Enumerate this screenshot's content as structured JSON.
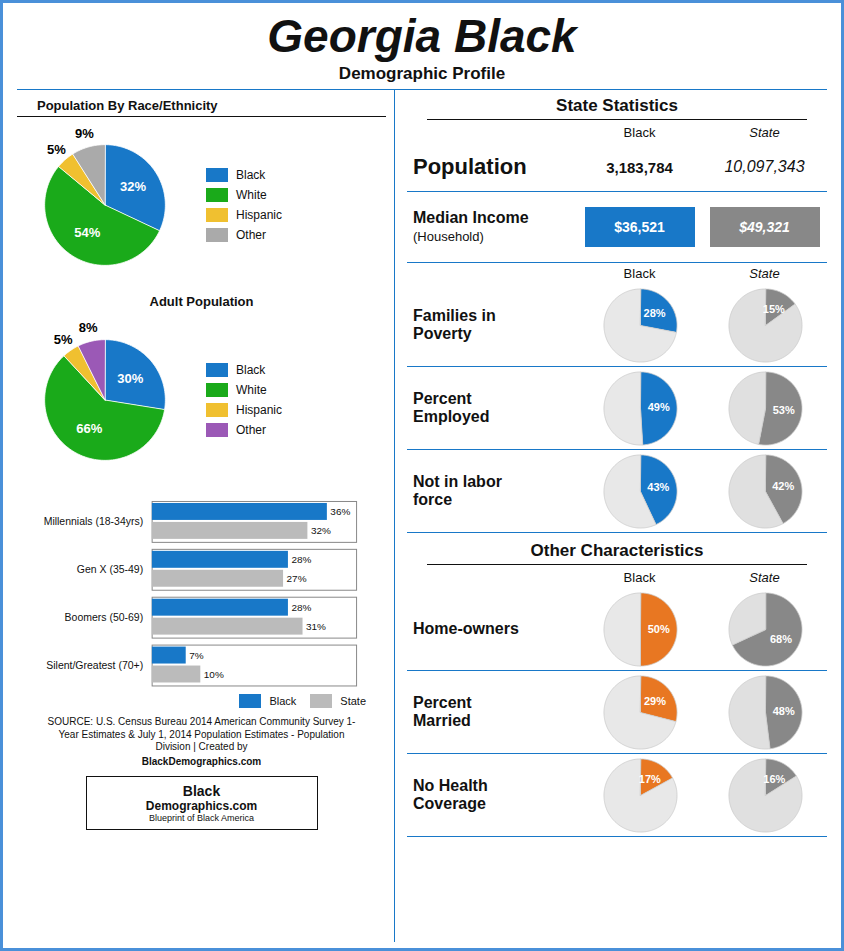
{
  "title": "Georgia Black",
  "subtitle": "Demographic Profile",
  "chart_data": [
    {
      "type": "pie",
      "title": "Population By Race/Ethnicity",
      "categories": [
        "Black",
        "White",
        "Hispanic",
        "Other"
      ],
      "values": [
        32,
        54,
        5,
        9
      ],
      "value_labels": [
        "32%",
        "54%",
        "5%",
        "9%"
      ],
      "colors": [
        "#1878c8",
        "#1aaa1a",
        "#f0c030",
        "#aaaaaa"
      ],
      "data_labels": true,
      "legend": "right"
    },
    {
      "type": "pie",
      "title": "Adult Population",
      "categories": [
        "Black",
        "White",
        "Hispanic",
        "Other"
      ],
      "values": [
        30,
        66,
        5,
        8
      ],
      "value_labels": [
        "30%",
        "66%",
        "5%",
        "8%"
      ],
      "colors": [
        "#1878c8",
        "#1aaa1a",
        "#f0c030",
        "#9b59b6"
      ],
      "data_labels": true,
      "legend": "right"
    },
    {
      "type": "bar",
      "orientation": "horizontal",
      "categories": [
        "Millennials (18-34yrs)",
        "Gen X (35-49)",
        "Boomers (50-69)",
        "Silent/Greatest (70+)"
      ],
      "series": [
        {
          "name": "Black",
          "color": "#1878c8",
          "values": [
            36,
            28,
            28,
            7
          ],
          "value_labels": [
            "36%",
            "28%",
            "28%",
            "7%"
          ]
        },
        {
          "name": "State",
          "color": "#bbbbbb",
          "values": [
            32,
            27,
            31,
            10
          ],
          "value_labels": [
            "32%",
            "27%",
            "31%",
            "10%"
          ]
        }
      ],
      "xlim": [
        0,
        42
      ],
      "tick_labels": "y",
      "data_labels": true,
      "legend": "lower right"
    },
    {
      "type": "table",
      "title": "State Statistics",
      "columns": [
        "Black",
        "State"
      ],
      "rows": [
        {
          "label": "Population",
          "values": [
            {
              "value": 3183784,
              "label": "3,183,784"
            },
            {
              "value": 10097343,
              "label": "10,097,343"
            }
          ]
        },
        {
          "label": "Median Income",
          "sublabel": "(Household)",
          "values": [
            {
              "value": 36521,
              "label": "$36,521"
            },
            {
              "value": 49321,
              "label": "$49,321"
            }
          ],
          "colors": [
            "#1878c8",
            "#888888"
          ]
        }
      ]
    },
    {
      "type": "pie",
      "columns": [
        "Black",
        "State"
      ],
      "data_labels": true,
      "rows": [
        {
          "label": "Families in\nPoverty",
          "series": [
            {
              "values": [
                28,
                72
              ],
              "value_labels": [
                "28%",
                null
              ],
              "colors": [
                "#1878c8",
                "#e8e8e8"
              ]
            },
            {
              "values": [
                15,
                85
              ],
              "value_labels": [
                "15%",
                null
              ],
              "colors": [
                "#888888",
                "#e0e0e0"
              ]
            }
          ]
        },
        {
          "label": "Percent\nEmployed",
          "series": [
            {
              "values": [
                49,
                51
              ],
              "value_labels": [
                "49%",
                null
              ],
              "colors": [
                "#1878c8",
                "#e8e8e8"
              ]
            },
            {
              "values": [
                53,
                47
              ],
              "value_labels": [
                "53%",
                null
              ],
              "colors": [
                "#888888",
                "#e0e0e0"
              ]
            }
          ]
        },
        {
          "label": "Not in labor\nforce",
          "series": [
            {
              "values": [
                43,
                57
              ],
              "value_labels": [
                "43%",
                null
              ],
              "colors": [
                "#1878c8",
                "#e8e8e8"
              ]
            },
            {
              "values": [
                42,
                58
              ],
              "value_labels": [
                "42%",
                null
              ],
              "colors": [
                "#888888",
                "#e0e0e0"
              ]
            }
          ]
        }
      ]
    },
    {
      "type": "pie",
      "title": "Other Characteristics",
      "columns": [
        "Black",
        "State"
      ],
      "data_labels": true,
      "rows": [
        {
          "label": "Home-owners",
          "series": [
            {
              "values": [
                50,
                50
              ],
              "value_labels": [
                "50%",
                null
              ],
              "colors": [
                "#e87722",
                "#e8e8e8"
              ]
            },
            {
              "values": [
                68,
                32
              ],
              "value_labels": [
                "68%",
                null
              ],
              "colors": [
                "#888888",
                "#e0e0e0"
              ]
            }
          ]
        },
        {
          "label": "Percent\nMarried",
          "series": [
            {
              "values": [
                29,
                71
              ],
              "value_labels": [
                "29%",
                null
              ],
              "colors": [
                "#e87722",
                "#e8e8e8"
              ]
            },
            {
              "values": [
                48,
                52
              ],
              "value_labels": [
                "48%",
                null
              ],
              "colors": [
                "#888888",
                "#e0e0e0"
              ]
            }
          ]
        },
        {
          "label": "No Health\nCoverage",
          "series": [
            {
              "values": [
                17,
                83
              ],
              "value_labels": [
                "17%",
                null
              ],
              "colors": [
                "#e87722",
                "#e8e8e8"
              ]
            },
            {
              "values": [
                16,
                84
              ],
              "value_labels": [
                "16%",
                null
              ],
              "colors": [
                "#888888",
                "#e0e0e0"
              ]
            }
          ]
        }
      ]
    }
  ],
  "annotations": {
    "source": "SOURCE: U.S. Census Bureau 2014 American Community Survey 1-\nYear Estimates & July 1, 2014  Population Estimates - Population\nDivision | Created by ",
    "source_bold": "BlackDemographics.com",
    "logo": [
      "Black",
      "Demographics.com",
      "Blueprint of Black America"
    ]
  }
}
